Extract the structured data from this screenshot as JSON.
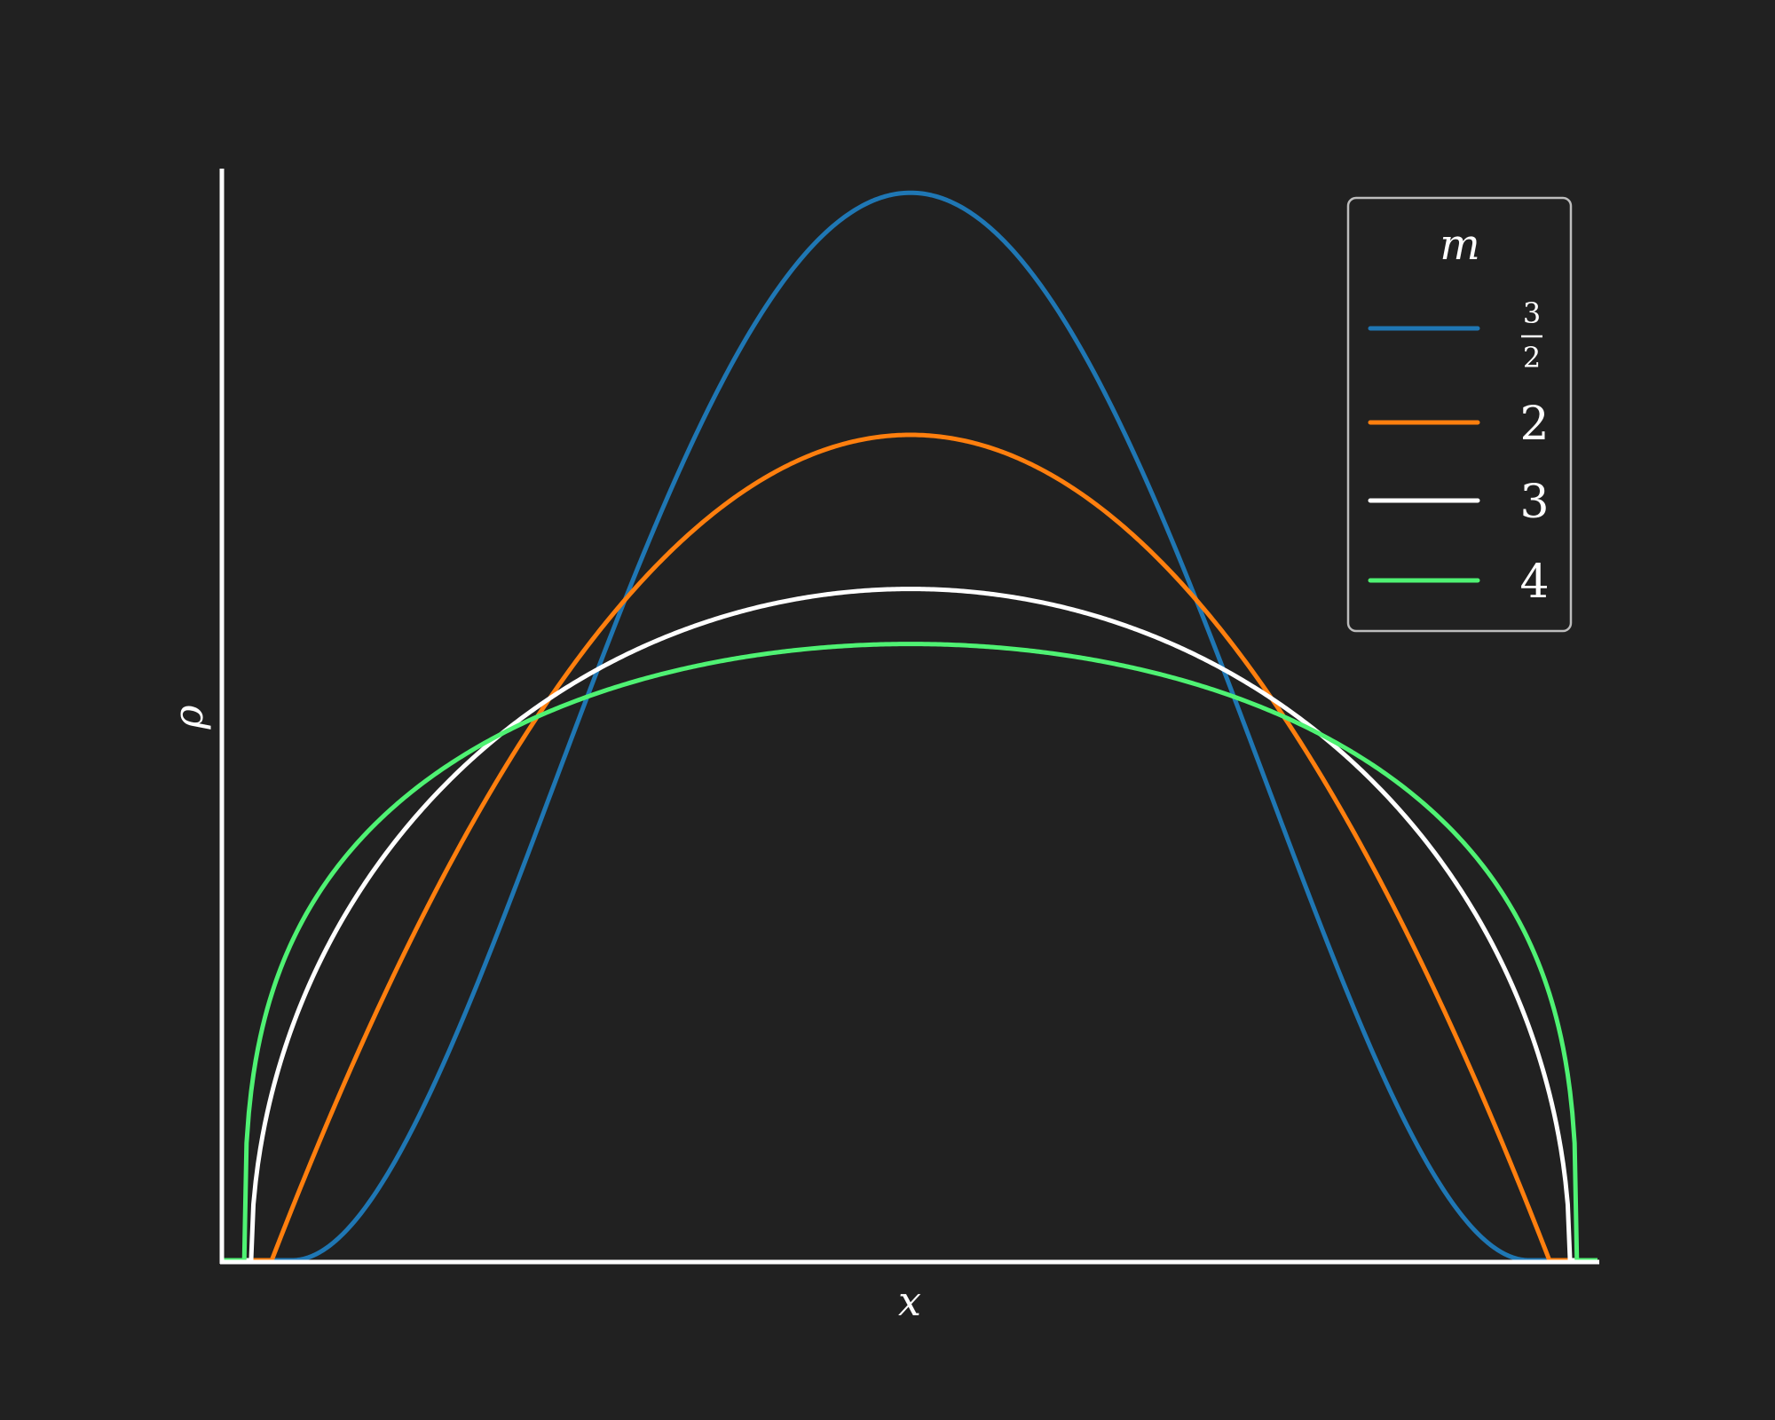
{
  "chart_data": {
    "type": "line",
    "title": "",
    "xlabel": "x",
    "ylabel": "ρ",
    "xlim": [
      -1.0,
      1.0
    ],
    "ylim": [
      0,
      1.0
    ],
    "grid": false,
    "legend": {
      "placement": "top-right",
      "title": "m",
      "entries": [
        {
          "label_num": "3",
          "label_den": "2",
          "label": ""
        },
        {
          "label": "2"
        },
        {
          "label": "3"
        },
        {
          "label": "4"
        }
      ]
    },
    "series": [
      {
        "m": 1.5,
        "color": "#1f77b4",
        "support": [
          -0.9,
          0.9
        ],
        "peak": 0.97
      },
      {
        "m": 2,
        "color": "#ff7f0e",
        "support": [
          -0.93,
          0.93
        ],
        "peak": 0.75
      },
      {
        "m": 3,
        "color": "#ffffff",
        "support": [
          -0.96,
          0.96
        ],
        "peak": 0.61
      },
      {
        "m": 4,
        "color": "#4ff273",
        "support": [
          -0.97,
          0.97
        ],
        "peak": 0.56
      }
    ]
  },
  "colors": {
    "background": "#212121",
    "axis": "#ffffff",
    "legend_border": "#bdbdbd"
  }
}
